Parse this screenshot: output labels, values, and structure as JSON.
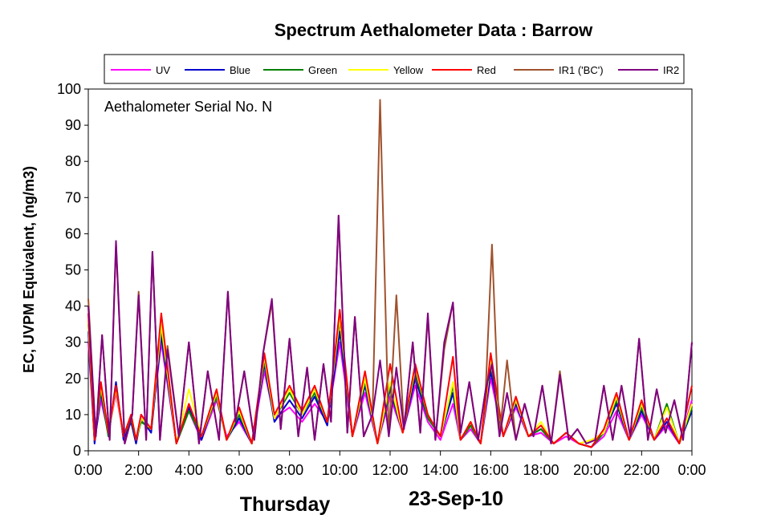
{
  "chart_data": {
    "type": "line",
    "title": "Spectrum Aethalometer Data  :  Barrow",
    "ylabel": "EC, UVPM Equivalent, (ng/m3)",
    "xlabel": "",
    "annotation": "Aethalometer  Serial No. N",
    "day_label": "Thursday",
    "date_label": "23-Sep-10",
    "xlim": [
      0,
      24
    ],
    "ylim": [
      0,
      100
    ],
    "x_ticks": [
      "0:00",
      "2:00",
      "4:00",
      "6:00",
      "8:00",
      "10:00",
      "12:00",
      "14:00",
      "16:00",
      "18:00",
      "20:00",
      "22:00",
      "0:00"
    ],
    "y_ticks": [
      "0",
      "10",
      "20",
      "30",
      "40",
      "50",
      "60",
      "70",
      "80",
      "90",
      "100"
    ],
    "grid": false,
    "legend_position": "top",
    "series": [
      {
        "name": "UV",
        "color": "#ff00ff",
        "x": [
          0,
          0.25,
          0.5,
          0.8,
          1.1,
          1.4,
          1.7,
          1.9,
          2.1,
          2.5,
          2.9,
          3.5,
          4,
          4.5,
          5.1,
          5.5,
          6,
          6.5,
          7,
          7.4,
          8,
          8.5,
          9,
          9.5,
          10,
          10.5,
          11,
          11.5,
          12,
          12.5,
          13,
          13.5,
          14,
          14.5,
          14.8,
          15.2,
          15.6,
          16,
          16.5,
          17,
          17.5,
          18,
          18.5,
          19,
          19.5,
          20,
          20.5,
          21,
          21.5,
          22,
          22.5,
          23,
          23.5,
          24
        ],
        "values": [
          30,
          3,
          14,
          5,
          16,
          4,
          9,
          3,
          10,
          6,
          30,
          2,
          11,
          3,
          14,
          4,
          8,
          2,
          22,
          9,
          12,
          8,
          13,
          8,
          30,
          4,
          16,
          2,
          15,
          5,
          18,
          8,
          3,
          13,
          3,
          6,
          2,
          20,
          4,
          12,
          4,
          5,
          2,
          4,
          2,
          1,
          4,
          11,
          3,
          10,
          3,
          7,
          2,
          14
        ]
      },
      {
        "name": "Blue",
        "color": "#0000cc",
        "x": [
          0,
          0.25,
          0.5,
          0.8,
          1.1,
          1.4,
          1.7,
          1.9,
          2.1,
          2.5,
          2.9,
          3.5,
          4,
          4.5,
          5.1,
          5.5,
          6,
          6.5,
          7,
          7.4,
          8,
          8.5,
          9,
          9.5,
          10,
          10.5,
          11,
          11.5,
          12,
          12.5,
          13,
          13.5,
          14,
          14.5,
          14.8,
          15.2,
          15.6,
          16,
          16.5,
          17,
          17.5,
          18,
          18.5,
          19,
          19.5,
          20,
          20.5,
          21,
          21.5,
          22,
          22.5,
          23,
          23.5,
          24
        ],
        "values": [
          33,
          2,
          16,
          4,
          19,
          3,
          8,
          2,
          9,
          5,
          32,
          2,
          12,
          3,
          16,
          3,
          9,
          2,
          24,
          8,
          14,
          9,
          15,
          7,
          33,
          4,
          18,
          2,
          17,
          5,
          20,
          9,
          4,
          16,
          3,
          7,
          2,
          22,
          4,
          13,
          4,
          6,
          2,
          5,
          2,
          1,
          5,
          13,
          3,
          11,
          3,
          8,
          2,
          11
        ]
      },
      {
        "name": "Green",
        "color": "#008000",
        "x": [
          0,
          0.25,
          0.5,
          0.8,
          1.1,
          1.4,
          1.7,
          1.9,
          2.1,
          2.5,
          2.9,
          3.5,
          4,
          4.5,
          5.1,
          5.5,
          6,
          6.5,
          7,
          7.4,
          8,
          8.5,
          9,
          9.5,
          10,
          10.5,
          11,
          11.5,
          12,
          12.5,
          13,
          13.5,
          14,
          14.5,
          14.8,
          15.2,
          15.6,
          16,
          16.5,
          17,
          17.5,
          18,
          18.5,
          19,
          19.5,
          20,
          20.5,
          21,
          21.5,
          22,
          22.5,
          23,
          23.5,
          24
        ],
        "values": [
          35,
          3,
          17,
          4,
          18,
          4,
          9,
          3,
          8,
          6,
          34,
          2,
          11,
          4,
          15,
          3,
          10,
          2,
          25,
          9,
          16,
          10,
          16,
          8,
          36,
          4,
          19,
          2,
          18,
          5,
          22,
          9,
          4,
          18,
          3,
          7,
          2,
          24,
          4,
          14,
          4,
          6,
          2,
          5,
          2,
          1,
          5,
          14,
          3,
          12,
          3,
          13,
          2,
          12
        ]
      },
      {
        "name": "Yellow",
        "color": "#ffff00",
        "x": [
          0,
          0.25,
          0.5,
          0.8,
          1.1,
          1.4,
          1.7,
          1.9,
          2.1,
          2.5,
          2.9,
          3.5,
          4,
          4.5,
          5.1,
          5.5,
          6,
          6.5,
          7,
          7.4,
          8,
          8.5,
          9,
          9.5,
          10,
          10.5,
          11,
          11.5,
          12,
          12.5,
          13,
          13.5,
          14,
          14.5,
          14.8,
          15.2,
          15.6,
          16,
          16.5,
          17,
          17.5,
          18,
          18.5,
          19,
          19.5,
          20,
          20.5,
          21,
          21.5,
          22,
          22.5,
          23,
          23.5,
          24
        ],
        "values": [
          36,
          3,
          18,
          5,
          17,
          4,
          10,
          3,
          9,
          6,
          35,
          2,
          17,
          4,
          16,
          3,
          11,
          2,
          26,
          9,
          17,
          10,
          17,
          8,
          37,
          4,
          20,
          2,
          19,
          5,
          23,
          10,
          4,
          19,
          3,
          8,
          2,
          25,
          4,
          14,
          4,
          8,
          2,
          5,
          2,
          3,
          5,
          15,
          3,
          13,
          3,
          12,
          2,
          13
        ]
      },
      {
        "name": "Red",
        "color": "#ff0000",
        "x": [
          0,
          0.25,
          0.5,
          0.8,
          1.1,
          1.4,
          1.7,
          1.9,
          2.1,
          2.5,
          2.9,
          3.5,
          4,
          4.5,
          5.1,
          5.5,
          6,
          6.5,
          7,
          7.4,
          8,
          8.5,
          9,
          9.5,
          10,
          10.5,
          11,
          11.5,
          12,
          12.5,
          13,
          13.5,
          14,
          14.5,
          14.8,
          15.2,
          15.6,
          16,
          16.5,
          17,
          17.5,
          18,
          18.5,
          19,
          19.5,
          20,
          20.5,
          21,
          21.5,
          22,
          22.5,
          23,
          23.5,
          24
        ],
        "values": [
          38,
          3,
          19,
          5,
          18,
          4,
          10,
          3,
          10,
          6,
          38,
          2,
          13,
          4,
          17,
          3,
          12,
          2,
          27,
          10,
          18,
          11,
          18,
          8,
          39,
          4,
          22,
          2,
          24,
          5,
          24,
          10,
          4,
          26,
          3,
          8,
          2,
          27,
          4,
          15,
          4,
          7,
          2,
          5,
          2,
          1,
          6,
          16,
          3,
          14,
          3,
          9,
          2,
          18
        ]
      },
      {
        "name": "IR1 ('BC')",
        "color": "#a0522d",
        "x": [
          0,
          0.3,
          0.55,
          0.85,
          1.1,
          1.45,
          1.75,
          2.0,
          2.3,
          2.55,
          2.85,
          3.15,
          3.6,
          4.0,
          4.4,
          4.75,
          5.2,
          5.55,
          5.85,
          6.2,
          6.6,
          6.95,
          7.3,
          7.65,
          8.0,
          8.35,
          8.7,
          9.0,
          9.35,
          9.65,
          9.95,
          10.3,
          10.6,
          10.95,
          11.3,
          11.6,
          11.95,
          12.25,
          12.55,
          12.9,
          13.2,
          13.5,
          13.8,
          14.15,
          14.5,
          14.8,
          15.15,
          15.5,
          15.8,
          16.05,
          16.35,
          16.65,
          17.0,
          17.35,
          17.7,
          18.05,
          18.4,
          18.75,
          19.1,
          19.45,
          19.8,
          20.15,
          20.5,
          20.85,
          21.2,
          21.55,
          21.9,
          22.25,
          22.6,
          22.95,
          23.3,
          23.65,
          24.0
        ],
        "values": [
          42,
          4,
          32,
          3,
          57,
          2,
          10,
          44,
          3,
          55,
          3,
          29,
          4,
          30,
          2,
          22,
          3,
          44,
          8,
          22,
          3,
          27,
          41,
          6,
          31,
          4,
          23,
          3,
          24,
          8,
          65,
          5,
          37,
          4,
          10,
          97,
          4,
          43,
          6,
          30,
          5,
          37,
          3,
          28,
          41,
          5,
          19,
          3,
          17,
          57,
          4,
          25,
          3,
          13,
          4,
          18,
          2,
          22,
          3,
          6,
          2,
          3,
          18,
          3,
          18,
          4,
          31,
          3,
          17,
          5,
          14,
          3,
          30
        ]
      },
      {
        "name": "IR2",
        "color": "#800080",
        "x": [
          0,
          0.3,
          0.55,
          0.85,
          1.1,
          1.45,
          1.75,
          2.0,
          2.3,
          2.55,
          2.85,
          3.15,
          3.6,
          4.0,
          4.4,
          4.75,
          5.2,
          5.55,
          5.85,
          6.2,
          6.6,
          6.95,
          7.3,
          7.65,
          8.0,
          8.35,
          8.7,
          9.0,
          9.35,
          9.65,
          9.95,
          10.3,
          10.6,
          10.95,
          11.3,
          11.6,
          11.95,
          12.25,
          12.55,
          12.9,
          13.2,
          13.5,
          13.8,
          14.15,
          14.5,
          14.8,
          15.15,
          15.5,
          15.8,
          16.05,
          16.35,
          16.65,
          17.0,
          17.35,
          17.7,
          18.05,
          18.4,
          18.75,
          19.1,
          19.45,
          19.8,
          20.15,
          20.5,
          20.85,
          21.2,
          21.55,
          21.9,
          22.25,
          22.6,
          22.95,
          23.3,
          23.65,
          24.0
        ],
        "values": [
          40,
          4,
          32,
          3,
          58,
          2,
          10,
          43,
          3,
          55,
          3,
          28,
          4,
          30,
          2,
          22,
          3,
          44,
          8,
          22,
          3,
          27,
          42,
          6,
          31,
          4,
          23,
          3,
          24,
          8,
          65,
          5,
          37,
          4,
          10,
          25,
          4,
          23,
          6,
          30,
          5,
          38,
          3,
          30,
          41,
          5,
          19,
          3,
          17,
          24,
          4,
          16,
          3,
          13,
          4,
          18,
          2,
          21,
          3,
          6,
          2,
          3,
          18,
          3,
          18,
          4,
          31,
          3,
          17,
          5,
          14,
          3,
          30
        ]
      }
    ]
  }
}
